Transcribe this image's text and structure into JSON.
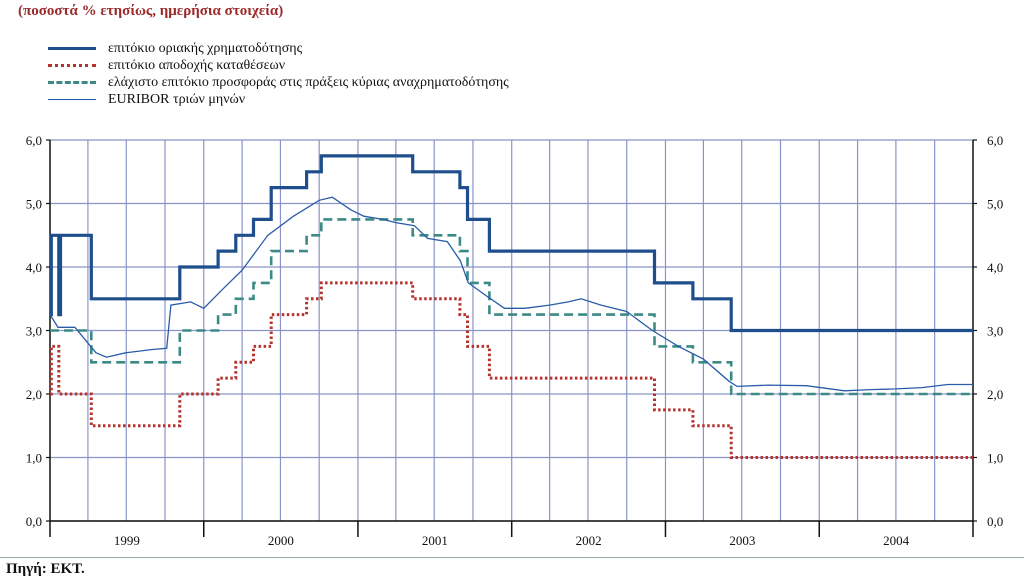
{
  "subtitle": "(ποσοστά % ετησίως, ημερήσια στοιχεία)",
  "source": "Πηγή: ΕΚΤ.",
  "chart_data": {
    "type": "line",
    "title": "",
    "ylim": [
      0,
      6
    ],
    "yticks": [
      "0,0",
      "1,0",
      "2,0",
      "3,0",
      "4,0",
      "5,0",
      "6,0"
    ],
    "x_range": [
      "1999-01-01",
      "2004-12-31"
    ],
    "xticks": [
      "1999",
      "2000",
      "2001",
      "2002",
      "2003",
      "2004"
    ],
    "grid": true,
    "legend_position": "top-left",
    "series": [
      {
        "name": "επιτόκιο οριακής χρηματοδότησης",
        "style": "solid-thick",
        "color": "#1f4e8c",
        "step": true,
        "points": [
          [
            "1999-01-01",
            3.25
          ],
          [
            "1999-01-04",
            4.5
          ],
          [
            "1999-01-22",
            3.25
          ],
          [
            "1999-01-26",
            4.5
          ],
          [
            "1999-04-09",
            3.5
          ],
          [
            "1999-11-05",
            4.0
          ],
          [
            "2000-02-04",
            4.25
          ],
          [
            "2000-03-17",
            4.5
          ],
          [
            "2000-04-28",
            4.75
          ],
          [
            "2000-06-09",
            5.25
          ],
          [
            "2000-09-01",
            5.5
          ],
          [
            "2000-10-06",
            5.75
          ],
          [
            "2001-05-11",
            5.5
          ],
          [
            "2001-08-31",
            5.25
          ],
          [
            "2001-09-18",
            4.75
          ],
          [
            "2001-11-09",
            4.25
          ],
          [
            "2002-12-06",
            3.75
          ],
          [
            "2003-03-07",
            3.5
          ],
          [
            "2003-06-06",
            3.0
          ],
          [
            "2004-12-31",
            3.0
          ]
        ]
      },
      {
        "name": "επιτόκιο αποδοχής καταθέσεων",
        "style": "dotted",
        "color": "#b5332e",
        "step": true,
        "points": [
          [
            "1999-01-01",
            2.0
          ],
          [
            "1999-01-04",
            2.75
          ],
          [
            "1999-01-22",
            2.0
          ],
          [
            "1999-04-09",
            1.5
          ],
          [
            "1999-11-05",
            2.0
          ],
          [
            "2000-02-04",
            2.25
          ],
          [
            "2000-03-17",
            2.5
          ],
          [
            "2000-04-28",
            2.75
          ],
          [
            "2000-06-09",
            3.25
          ],
          [
            "2000-09-01",
            3.5
          ],
          [
            "2000-10-06",
            3.75
          ],
          [
            "2001-05-11",
            3.5
          ],
          [
            "2001-08-31",
            3.25
          ],
          [
            "2001-09-18",
            2.75
          ],
          [
            "2001-11-09",
            2.25
          ],
          [
            "2002-12-06",
            1.75
          ],
          [
            "2003-03-07",
            1.5
          ],
          [
            "2003-06-06",
            1.0
          ],
          [
            "2004-12-31",
            1.0
          ]
        ]
      },
      {
        "name": "ελάχιστο επιτόκιο προσφοράς στις πράξεις κύριας αναχρηματοδότησης",
        "style": "dashed",
        "color": "#3b8a86",
        "step": true,
        "points": [
          [
            "1999-01-01",
            3.0
          ],
          [
            "1999-04-09",
            2.5
          ],
          [
            "1999-11-05",
            3.0
          ],
          [
            "2000-02-04",
            3.25
          ],
          [
            "2000-03-17",
            3.5
          ],
          [
            "2000-04-28",
            3.75
          ],
          [
            "2000-06-09",
            4.25
          ],
          [
            "2000-09-01",
            4.5
          ],
          [
            "2000-10-06",
            4.75
          ],
          [
            "2001-05-11",
            4.5
          ],
          [
            "2001-08-31",
            4.25
          ],
          [
            "2001-09-18",
            3.75
          ],
          [
            "2001-11-09",
            3.25
          ],
          [
            "2002-12-06",
            2.75
          ],
          [
            "2003-03-07",
            2.5
          ],
          [
            "2003-06-06",
            2.0
          ],
          [
            "2004-12-31",
            2.0
          ]
        ]
      },
      {
        "name": "EURIBOR τριών μηνών",
        "style": "solid-thin",
        "color": "#2a5ca8",
        "step": false,
        "points": [
          [
            "1999-01-01",
            3.25
          ],
          [
            "1999-01-20",
            3.05
          ],
          [
            "1999-03-01",
            3.05
          ],
          [
            "1999-04-20",
            2.65
          ],
          [
            "1999-05-15",
            2.58
          ],
          [
            "1999-07-01",
            2.65
          ],
          [
            "1999-09-01",
            2.7
          ],
          [
            "1999-10-05",
            2.72
          ],
          [
            "1999-10-15",
            3.4
          ],
          [
            "1999-12-01",
            3.45
          ],
          [
            "2000-01-01",
            3.35
          ],
          [
            "2000-02-15",
            3.65
          ],
          [
            "2000-04-01",
            3.95
          ],
          [
            "2000-06-01",
            4.5
          ],
          [
            "2000-08-01",
            4.8
          ],
          [
            "2000-10-01",
            5.05
          ],
          [
            "2000-11-01",
            5.1
          ],
          [
            "2000-12-15",
            4.9
          ],
          [
            "2001-01-15",
            4.8
          ],
          [
            "2001-03-01",
            4.75
          ],
          [
            "2001-04-01",
            4.7
          ],
          [
            "2001-05-15",
            4.65
          ],
          [
            "2001-06-15",
            4.45
          ],
          [
            "2001-08-01",
            4.4
          ],
          [
            "2001-09-01",
            4.1
          ],
          [
            "2001-09-20",
            3.75
          ],
          [
            "2001-11-01",
            3.55
          ],
          [
            "2001-12-15",
            3.35
          ],
          [
            "2002-02-01",
            3.35
          ],
          [
            "2002-04-01",
            3.4
          ],
          [
            "2002-05-15",
            3.45
          ],
          [
            "2002-06-15",
            3.5
          ],
          [
            "2002-08-01",
            3.4
          ],
          [
            "2002-10-01",
            3.3
          ],
          [
            "2002-12-01",
            3.0
          ],
          [
            "2003-02-01",
            2.75
          ],
          [
            "2003-04-01",
            2.55
          ],
          [
            "2003-06-01",
            2.2
          ],
          [
            "2003-06-20",
            2.12
          ],
          [
            "2003-09-01",
            2.14
          ],
          [
            "2003-12-01",
            2.13
          ],
          [
            "2004-03-01",
            2.05
          ],
          [
            "2004-05-01",
            2.07
          ],
          [
            "2004-07-01",
            2.08
          ],
          [
            "2004-09-01",
            2.1
          ],
          [
            "2004-11-01",
            2.15
          ],
          [
            "2004-12-31",
            2.15
          ]
        ]
      }
    ]
  }
}
